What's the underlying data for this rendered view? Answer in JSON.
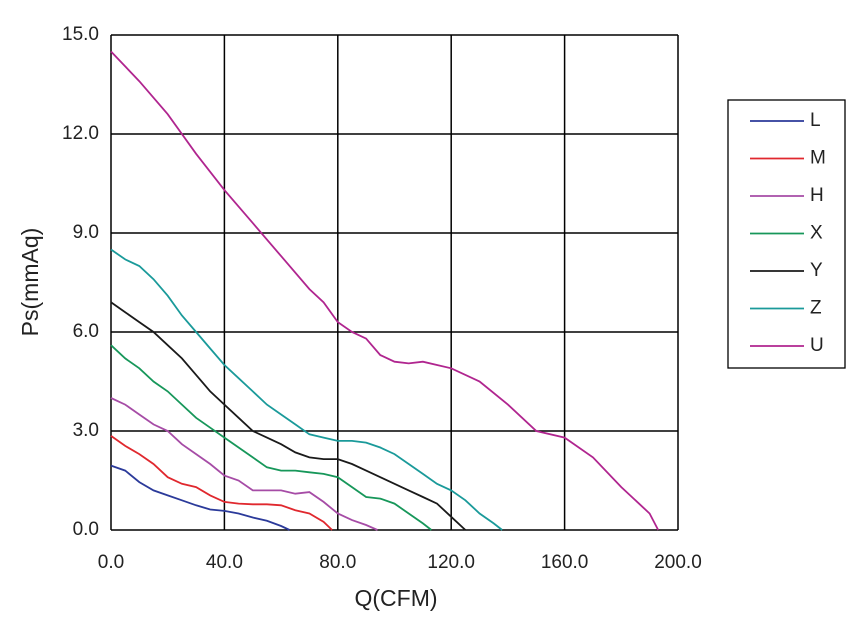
{
  "chart_data": {
    "type": "line",
    "x_label": "Q(CFM)",
    "y_label": "Ps(mmAq)",
    "xlim": [
      0,
      200
    ],
    "ylim": [
      0,
      15
    ],
    "xticks": [
      {
        "value": 0,
        "label": "0.0"
      },
      {
        "value": 40,
        "label": "40.0"
      },
      {
        "value": 80,
        "label": "80.0"
      },
      {
        "value": 120,
        "label": "120.0"
      },
      {
        "value": 160,
        "label": "160.0"
      },
      {
        "value": 200,
        "label": "200.0"
      }
    ],
    "yticks": [
      {
        "value": 0,
        "label": "0.0"
      },
      {
        "value": 3,
        "label": "3.0"
      },
      {
        "value": 6,
        "label": "6.0"
      },
      {
        "value": 9,
        "label": "9.0"
      },
      {
        "value": 12,
        "label": "12.0"
      },
      {
        "value": 15,
        "label": "15.0"
      }
    ],
    "grid": true,
    "legend": "right",
    "series": [
      {
        "name": "L",
        "color": "#2b3a9a",
        "x": [
          0,
          5,
          10,
          15,
          20,
          25,
          30,
          35,
          40,
          45,
          50,
          55,
          60,
          63
        ],
        "values": [
          1.95,
          1.8,
          1.45,
          1.2,
          1.05,
          0.9,
          0.75,
          0.62,
          0.58,
          0.5,
          0.38,
          0.28,
          0.12,
          0
        ]
      },
      {
        "name": "M",
        "color": "#e0282e",
        "x": [
          0,
          5,
          10,
          15,
          20,
          25,
          30,
          35,
          40,
          45,
          50,
          55,
          60,
          65,
          70,
          75,
          78
        ],
        "values": [
          2.85,
          2.55,
          2.3,
          2.0,
          1.6,
          1.4,
          1.3,
          1.05,
          0.85,
          0.8,
          0.78,
          0.78,
          0.75,
          0.6,
          0.5,
          0.25,
          0
        ]
      },
      {
        "name": "H",
        "color": "#a64ca6",
        "x": [
          0,
          5,
          10,
          15,
          20,
          25,
          30,
          35,
          40,
          45,
          50,
          55,
          60,
          65,
          70,
          75,
          80,
          85,
          90,
          94
        ],
        "values": [
          4.0,
          3.8,
          3.5,
          3.2,
          3.0,
          2.6,
          2.3,
          2.0,
          1.65,
          1.5,
          1.2,
          1.2,
          1.2,
          1.1,
          1.15,
          0.85,
          0.5,
          0.3,
          0.15,
          0
        ]
      },
      {
        "name": "X",
        "color": "#17975a",
        "x": [
          0,
          5,
          10,
          15,
          20,
          25,
          30,
          35,
          40,
          45,
          50,
          55,
          60,
          65,
          70,
          75,
          80,
          85,
          90,
          95,
          100,
          105,
          110,
          113
        ],
        "values": [
          5.6,
          5.2,
          4.9,
          4.5,
          4.2,
          3.8,
          3.4,
          3.1,
          2.8,
          2.5,
          2.2,
          1.9,
          1.8,
          1.8,
          1.75,
          1.7,
          1.6,
          1.3,
          1.0,
          0.95,
          0.8,
          0.5,
          0.2,
          0
        ]
      },
      {
        "name": "Y",
        "color": "#1a1a1a",
        "x": [
          0,
          5,
          10,
          15,
          20,
          25,
          30,
          35,
          40,
          45,
          50,
          55,
          60,
          65,
          70,
          75,
          80,
          85,
          90,
          95,
          100,
          105,
          110,
          115,
          120,
          125
        ],
        "values": [
          6.9,
          6.6,
          6.3,
          6.0,
          5.6,
          5.2,
          4.7,
          4.2,
          3.8,
          3.4,
          3.0,
          2.8,
          2.6,
          2.35,
          2.2,
          2.15,
          2.15,
          2.0,
          1.8,
          1.6,
          1.4,
          1.2,
          1.0,
          0.8,
          0.4,
          0
        ]
      },
      {
        "name": "Z",
        "color": "#1a9a9a",
        "x": [
          0,
          5,
          10,
          15,
          20,
          25,
          30,
          35,
          40,
          45,
          50,
          55,
          60,
          65,
          70,
          75,
          80,
          85,
          90,
          95,
          100,
          105,
          110,
          115,
          120,
          125,
          130,
          135,
          138
        ],
        "values": [
          8.5,
          8.2,
          8.0,
          7.6,
          7.1,
          6.5,
          6.0,
          5.5,
          5.0,
          4.6,
          4.2,
          3.8,
          3.5,
          3.2,
          2.9,
          2.8,
          2.7,
          2.7,
          2.65,
          2.5,
          2.3,
          2.0,
          1.7,
          1.4,
          1.2,
          0.9,
          0.5,
          0.2,
          0
        ]
      },
      {
        "name": "U",
        "color": "#b0258f",
        "x": [
          0,
          10,
          20,
          30,
          40,
          50,
          60,
          70,
          75,
          80,
          85,
          90,
          95,
          100,
          105,
          110,
          115,
          120,
          130,
          140,
          150,
          160,
          170,
          180,
          190,
          193
        ],
        "values": [
          14.5,
          13.6,
          12.6,
          11.4,
          10.3,
          9.3,
          8.3,
          7.3,
          6.9,
          6.3,
          6.0,
          5.8,
          5.3,
          5.1,
          5.05,
          5.1,
          5.0,
          4.9,
          4.5,
          3.8,
          3.0,
          2.8,
          2.2,
          1.3,
          0.5,
          0
        ]
      }
    ]
  }
}
